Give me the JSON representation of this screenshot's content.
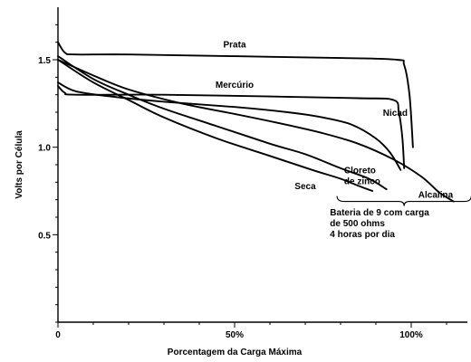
{
  "chart_data": {
    "type": "line",
    "xlabel": "Porcentagem da Carga Máxima",
    "ylabel": "Volts por Célula",
    "xlim": [
      0,
      118
    ],
    "ylim": [
      0,
      1.8
    ],
    "x_ticks": [
      {
        "value": 0,
        "label": "0"
      },
      {
        "value": 50,
        "label": "50%"
      },
      {
        "value": 100,
        "label": "100%"
      }
    ],
    "x_minor_ticks": [
      10,
      20,
      30,
      40,
      60,
      70,
      80,
      90,
      110
    ],
    "y_ticks": [
      {
        "value": 0.5,
        "label": "0.5"
      },
      {
        "value": 1.0,
        "label": "1.0"
      },
      {
        "value": 1.5,
        "label": "1.5"
      }
    ],
    "y_minor_ticks": [
      0.0,
      0.1,
      0.2,
      0.3,
      0.4,
      0.6,
      0.7,
      0.8,
      0.9,
      1.1,
      1.2,
      1.3,
      1.4,
      1.6,
      1.7
    ],
    "grid": false,
    "legend": "none",
    "series": [
      {
        "name": "Prata",
        "points": [
          [
            0,
            1.6
          ],
          [
            2,
            1.54
          ],
          [
            5,
            1.53
          ],
          [
            20,
            1.53
          ],
          [
            50,
            1.52
          ],
          [
            80,
            1.51
          ],
          [
            96,
            1.5
          ],
          [
            98,
            1.47
          ],
          [
            99.5,
            1.3
          ],
          [
            100.5,
            1.0
          ]
        ]
      },
      {
        "name": "Mercúrio",
        "points": [
          [
            0,
            1.35
          ],
          [
            2,
            1.31
          ],
          [
            5,
            1.3
          ],
          [
            30,
            1.3
          ],
          [
            60,
            1.29
          ],
          [
            85,
            1.28
          ],
          [
            95,
            1.27
          ],
          [
            96.5,
            1.2
          ],
          [
            97.5,
            1.05
          ],
          [
            98,
            0.88
          ]
        ]
      },
      {
        "name": "Nicad",
        "points": [
          [
            0,
            1.37
          ],
          [
            5,
            1.32
          ],
          [
            15,
            1.29
          ],
          [
            30,
            1.26
          ],
          [
            50,
            1.23
          ],
          [
            65,
            1.2
          ],
          [
            75,
            1.17
          ],
          [
            83,
            1.13
          ],
          [
            90,
            1.05
          ],
          [
            94,
            0.97
          ],
          [
            97,
            0.87
          ]
        ]
      },
      {
        "name": "Alcalina",
        "points": [
          [
            0,
            1.5
          ],
          [
            10,
            1.41
          ],
          [
            20,
            1.33
          ],
          [
            35,
            1.25
          ],
          [
            50,
            1.19
          ],
          [
            62,
            1.14
          ],
          [
            75,
            1.08
          ],
          [
            85,
            1.02
          ],
          [
            95,
            0.93
          ],
          [
            103,
            0.83
          ],
          [
            108,
            0.74
          ],
          [
            112,
            0.69
          ]
        ]
      },
      {
        "name": "Cloreto de zinco",
        "points": [
          [
            0,
            1.52
          ],
          [
            10,
            1.39
          ],
          [
            20,
            1.3
          ],
          [
            30,
            1.22
          ],
          [
            45,
            1.12
          ],
          [
            60,
            1.02
          ],
          [
            70,
            0.96
          ],
          [
            80,
            0.88
          ],
          [
            88,
            0.82
          ],
          [
            93,
            0.76
          ]
        ]
      },
      {
        "name": "Seca",
        "points": [
          [
            0,
            1.5
          ],
          [
            10,
            1.37
          ],
          [
            20,
            1.27
          ],
          [
            30,
            1.17
          ],
          [
            45,
            1.05
          ],
          [
            60,
            0.95
          ],
          [
            72,
            0.87
          ],
          [
            80,
            0.82
          ],
          [
            85,
            0.78
          ],
          [
            89,
            0.75
          ]
        ]
      }
    ],
    "curve_labels": [
      {
        "text": "Prata",
        "x": 50,
        "y": 1.57
      },
      {
        "text": "Mercúrio",
        "x": 50,
        "y": 1.34
      },
      {
        "text": "Nicad",
        "x": 92,
        "y": 1.18
      },
      {
        "text": "Seca",
        "x": 67,
        "y": 0.76
      },
      {
        "text": "Cloreto",
        "x": 81,
        "y": 0.85
      },
      {
        "text": "de zinco",
        "x": 81,
        "y": 0.79
      },
      {
        "text": "Alcalina",
        "x": 102,
        "y": 0.71
      }
    ],
    "note": {
      "lines": [
        "Bateria de 9 com carga",
        "de 500 ohms",
        "4 horas por dia"
      ],
      "x": 77,
      "y": 0.61
    },
    "brace": {
      "x_start": 79,
      "x_end": 117,
      "y": 0.69
    }
  }
}
